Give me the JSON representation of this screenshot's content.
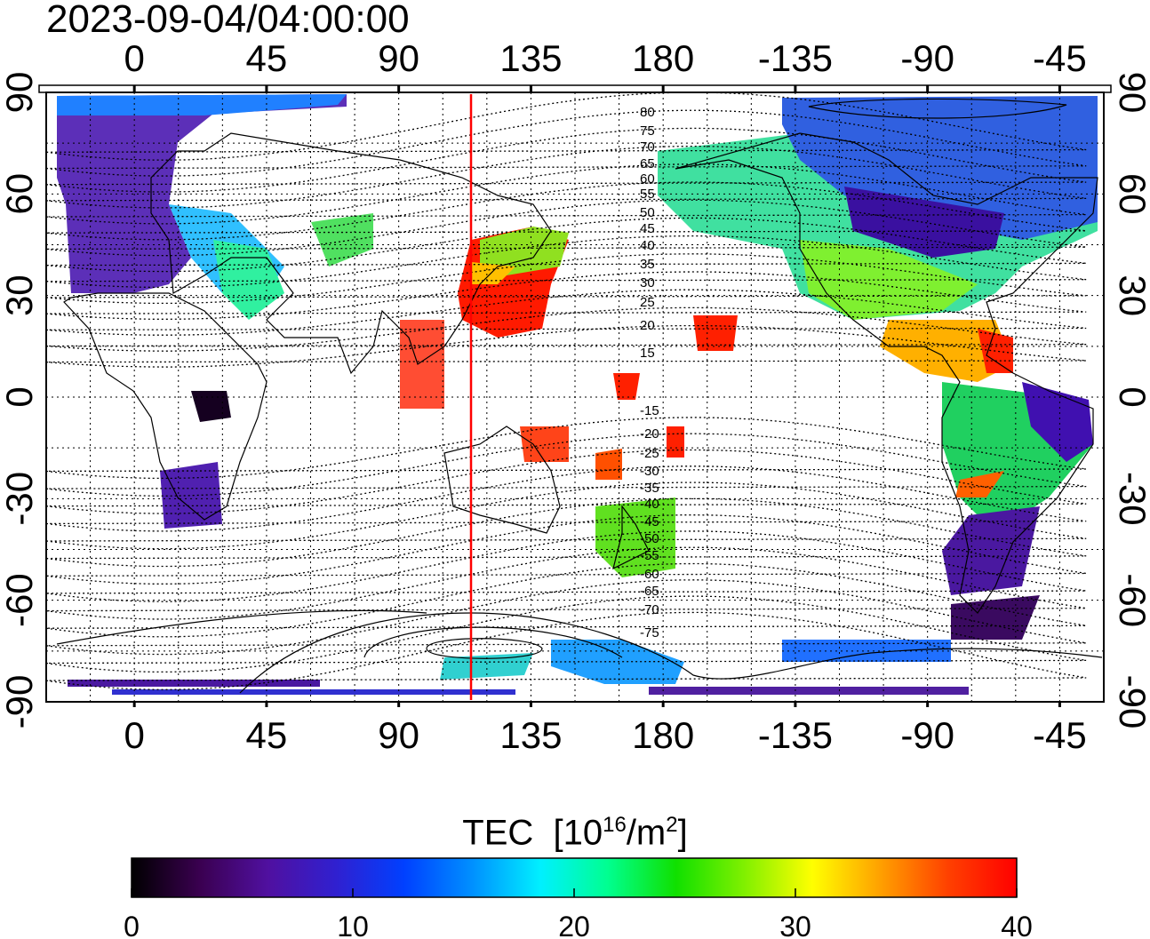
{
  "map": {
    "timestamp": "2023-09-04/04:00:00",
    "projection": "equirectangular",
    "lon_center": 150,
    "lat_range": [
      -90,
      90
    ],
    "top_lon_ticks": [
      "0",
      "45",
      "90",
      "135",
      "180",
      "-135",
      "-90",
      "-45"
    ],
    "bottom_lon_ticks": [
      "0",
      "45",
      "90",
      "135",
      "180",
      "-135",
      "-90",
      "-45"
    ],
    "left_lat_ticks": [
      "90",
      "60",
      "30",
      "0",
      "-30",
      "-60",
      "-90"
    ],
    "right_lat_ticks": [
      "90",
      "60",
      "30",
      "0",
      "-30",
      "-60",
      "-90"
    ],
    "marker_line_lon": 120,
    "marker_line_color": "#ff0000",
    "grid": "dotted",
    "contour_labels_north": [
      "80",
      "75",
      "70",
      "65",
      "60",
      "55",
      "50",
      "45",
      "40",
      "35",
      "30",
      "25",
      "20",
      "15"
    ],
    "contour_labels_south": [
      "-15",
      "-20",
      "-25",
      "-30",
      "-35",
      "-40",
      "-45",
      "-50",
      "-55",
      "-60",
      "-65",
      "-70",
      "-75"
    ]
  },
  "colorbar": {
    "title": "TEC",
    "unit_prefix": "[10",
    "unit_exp": "16",
    "unit_mid": "/m",
    "unit_exp2": "2",
    "unit_suffix": "]",
    "ticks": [
      "0",
      "10",
      "20",
      "30",
      "40"
    ],
    "range": [
      0,
      40
    ],
    "colors": [
      "#000000",
      "#3a0050",
      "#5010a0",
      "#3020d0",
      "#0040ff",
      "#0090ff",
      "#00f0ff",
      "#00ff90",
      "#10e000",
      "#80f000",
      "#ffff00",
      "#ffa000",
      "#ff4000",
      "#ff0000"
    ]
  }
}
